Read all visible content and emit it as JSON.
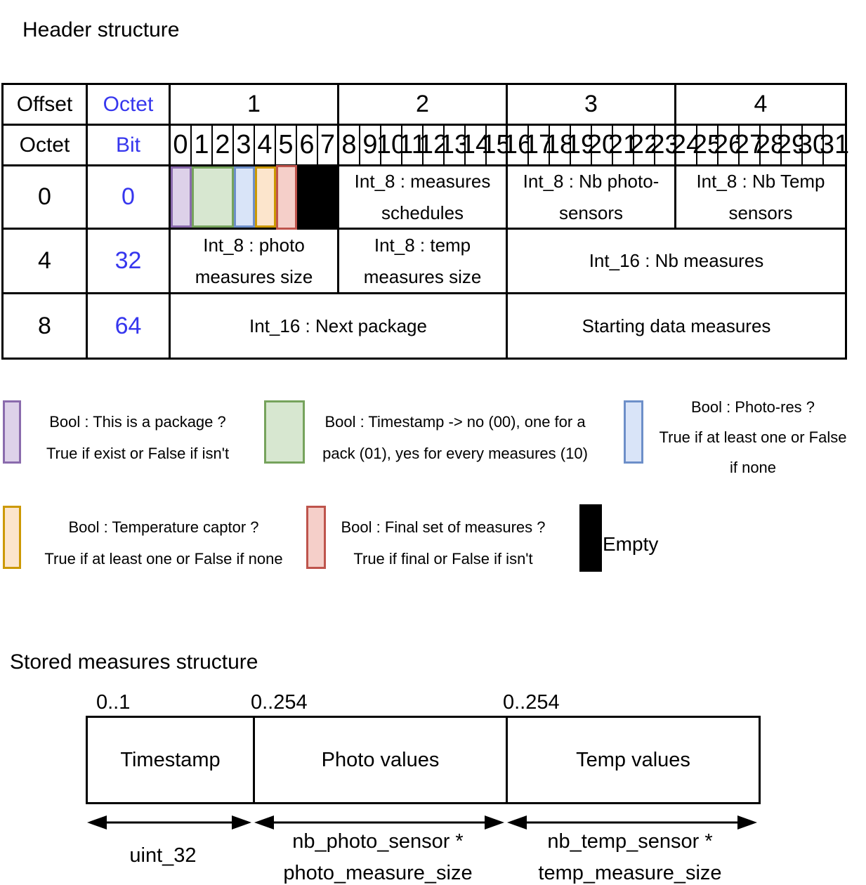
{
  "accent_blue": "#3636EE",
  "palette": {
    "purple": {
      "fill": "#DDD1E9",
      "border": "#8A6BAD"
    },
    "green": {
      "fill": "#D7E7D0",
      "border": "#76A35C"
    },
    "blue": {
      "fill": "#D9E4F8",
      "border": "#6D8FC9"
    },
    "orange": {
      "fill": "#FCE5CC",
      "border": "#CC9903"
    },
    "red": {
      "fill": "#F5CFC9",
      "border": "#BE544C"
    },
    "black": {
      "fill": "#000000",
      "border": "#000000"
    }
  },
  "header_section": {
    "title": "Header structure",
    "table": {
      "offset_label": "Offset",
      "octet_label": "Octet",
      "octet_row2_label": "Octet",
      "bit_label": "Bit",
      "octet_headers": [
        "1",
        "2",
        "3",
        "4"
      ],
      "bit_numbers": [
        "0",
        "1",
        "2",
        "3",
        "4",
        "5",
        "6",
        "7",
        "8",
        "9",
        "10",
        "11",
        "12",
        "13",
        "14",
        "15",
        "16",
        "17",
        "18",
        "19",
        "20",
        "21",
        "22",
        "23",
        "24",
        "25",
        "26",
        "27",
        "28",
        "29",
        "30",
        "31"
      ],
      "rows": [
        {
          "offset": "0",
          "bit_offset": "0",
          "cells": [
            {
              "type": "color",
              "span": 1,
              "color": "purple"
            },
            {
              "type": "color",
              "span": 2,
              "color": "green"
            },
            {
              "type": "color",
              "span": 1,
              "color": "blue"
            },
            {
              "type": "color",
              "span": 1,
              "color": "orange"
            },
            {
              "type": "color",
              "span": 1,
              "color": "red"
            },
            {
              "type": "color",
              "span": 2,
              "color": "black"
            },
            {
              "type": "text",
              "span": 8,
              "label": "Int_8 : measures schedules"
            },
            {
              "type": "text",
              "span": 8,
              "label": "Int_8 : Nb photo-sensors"
            },
            {
              "type": "text",
              "span": 8,
              "label": "Int_8 : Nb Temp sensors"
            }
          ]
        },
        {
          "offset": "4",
          "bit_offset": "32",
          "cells": [
            {
              "type": "text",
              "span": 8,
              "label": "Int_8 : photo measures size"
            },
            {
              "type": "text",
              "span": 8,
              "label": "Int_8 : temp measures size"
            },
            {
              "type": "text",
              "span": 16,
              "label": "Int_16 : Nb measures"
            }
          ]
        },
        {
          "offset": "8",
          "bit_offset": "64",
          "cells": [
            {
              "type": "text",
              "span": 16,
              "label": "Int_16 : Next package"
            },
            {
              "type": "text",
              "span": 16,
              "label": "Starting data measures"
            }
          ]
        }
      ]
    }
  },
  "legend": {
    "items": [
      {
        "color": "purple",
        "lines": [
          "Bool : This is a package ?",
          "True if exist or False if isn't"
        ]
      },
      {
        "color": "green",
        "lines": [
          "Bool : Timestamp -> no (00), one for a",
          "pack (01), yes for every measures (10)"
        ]
      },
      {
        "color": "blue",
        "lines": [
          "Bool : Photo-res ?",
          "True if at least one or False",
          "if none"
        ]
      },
      {
        "color": "orange",
        "lines": [
          "Bool : Temperature captor ?",
          "True if at least one or False if none"
        ]
      },
      {
        "color": "red",
        "lines": [
          "Bool : Final set of measures ?",
          "True if final or False if isn't"
        ]
      },
      {
        "color": "black",
        "lines": [
          "Empty"
        ]
      }
    ]
  },
  "stored_section": {
    "title": "Stored measures structure",
    "fields": [
      {
        "range": "0..1",
        "label": "Timestamp",
        "size_lines": [
          "uint_32"
        ]
      },
      {
        "range": "0..254",
        "label": "Photo values",
        "size_lines": [
          "nb_photo_sensor *",
          "photo_measure_size"
        ]
      },
      {
        "range": "0..254",
        "label": "Temp values",
        "size_lines": [
          "nb_temp_sensor *",
          "temp_measure_size"
        ]
      }
    ]
  }
}
